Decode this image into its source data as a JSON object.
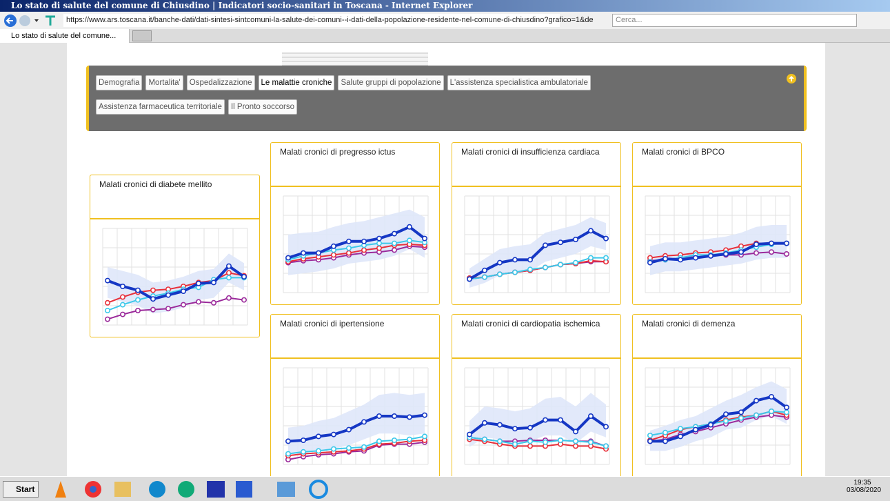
{
  "window": {
    "title": "Lo stato di salute del comune di Chiusdino | Indicatori socio-sanitari in Toscana - Internet Explorer",
    "url": "https://www.ars.toscana.it/banche-dati/dati-sintesi-sintcomuni-la-salute-dei-comuni--i-dati-della-popolazione-residente-nel-comune-di-chiusdino?grafico=1&de",
    "search": "Cerca...",
    "tab": "Lo stato di salute del comune..."
  },
  "nav": [
    "Demografia",
    "Mortalita'",
    "Ospedalizzazione",
    "Le malattie croniche",
    "Salute gruppi di popolazione",
    "L'assistenza specialistica ambulatoriale",
    "Assistenza farmaceutica territoriale",
    "Il Pronto soccorso"
  ],
  "nav_selected": "Le malattie croniche",
  "cards": [
    {
      "title": "Malati cronici di diabete mellito",
      "band": {
        "high": [
          60,
          56,
          52,
          44,
          46,
          50,
          56,
          58,
          74,
          64
        ],
        "low": [
          28,
          24,
          20,
          12,
          14,
          18,
          26,
          28,
          44,
          36
        ]
      },
      "series": [
        {
          "color": "#1537c4",
          "values": [
            46,
            40,
            36,
            27,
            31,
            35,
            43,
            44,
            61,
            50
          ]
        },
        {
          "color": "#3cc8ea",
          "values": [
            15,
            21,
            26,
            30,
            33,
            37,
            39,
            47,
            49,
            49
          ]
        },
        {
          "color": "#e8303a",
          "values": [
            23,
            29,
            34,
            36,
            37,
            40,
            44,
            46,
            54,
            51
          ]
        },
        {
          "color": "#9b2a9b",
          "values": [
            6,
            11,
            15,
            16,
            17,
            21,
            24,
            23,
            28,
            26
          ]
        }
      ]
    },
    {
      "title": "Malati cronici di pregresso ictus",
      "band": {
        "high": [
          60,
          62,
          63,
          68,
          72,
          74,
          78,
          82,
          86,
          78
        ],
        "low": [
          18,
          20,
          22,
          25,
          30,
          32,
          34,
          38,
          45,
          36
        ]
      },
      "series": [
        {
          "color": "#1537c4",
          "values": [
            36,
            41,
            41,
            48,
            53,
            53,
            56,
            61,
            68,
            56
          ]
        },
        {
          "color": "#3cc8ea",
          "values": [
            34,
            38,
            41,
            44,
            46,
            49,
            51,
            51,
            54,
            52
          ]
        },
        {
          "color": "#e8303a",
          "values": [
            32,
            35,
            37,
            39,
            41,
            44,
            46,
            49,
            50,
            49
          ]
        },
        {
          "color": "#9b2a9b",
          "values": [
            31,
            33,
            34,
            36,
            39,
            41,
            42,
            44,
            48,
            47
          ]
        }
      ]
    },
    {
      "title": "Malati cronici di insufficienza cardiaca",
      "band": {
        "high": [
          25,
          35,
          45,
          48,
          50,
          62,
          66,
          70,
          78,
          72
        ],
        "low": [
          5,
          10,
          18,
          20,
          22,
          32,
          36,
          40,
          48,
          44
        ]
      },
      "series": [
        {
          "color": "#1537c4",
          "values": [
            14,
            23,
            31,
            34,
            34,
            49,
            52,
            55,
            64,
            56
          ]
        },
        {
          "color": "#3cc8ea",
          "values": [
            14,
            16,
            19,
            21,
            24,
            26,
            29,
            31,
            36,
            36
          ]
        },
        {
          "color": "#e8303a",
          "values": [
            15,
            16,
            19,
            21,
            23,
            26,
            29,
            30,
            33,
            32
          ]
        },
        {
          "color": "#9b2a9b",
          "values": [
            14,
            16,
            19,
            21,
            23,
            26,
            29,
            30,
            32,
            32
          ]
        }
      ]
    },
    {
      "title": "Malati cronici di BPCO",
      "band": {
        "high": [
          48,
          52,
          52,
          54,
          56,
          58,
          62,
          68,
          70,
          70
        ],
        "low": [
          18,
          22,
          22,
          24,
          26,
          28,
          30,
          34,
          36,
          36
        ]
      },
      "series": [
        {
          "color": "#1537c4",
          "values": [
            31,
            35,
            34,
            36,
            38,
            40,
            42,
            50,
            51,
            51
          ]
        },
        {
          "color": "#3cc8ea",
          "values": [
            32,
            34,
            36,
            39,
            39,
            41,
            44,
            47,
            50,
            51
          ]
        },
        {
          "color": "#e8303a",
          "values": [
            36,
            38,
            39,
            41,
            42,
            44,
            48,
            51,
            51,
            51
          ]
        },
        {
          "color": "#9b2a9b",
          "values": [
            33,
            34,
            36,
            37,
            38,
            39,
            39,
            41,
            42,
            40
          ]
        }
      ]
    },
    {
      "title": "Malati cronici di ipertensione",
      "band": {
        "high": [
          38,
          40,
          45,
          48,
          55,
          62,
          72,
          74,
          72,
          74
        ],
        "low": [
          10,
          12,
          14,
          16,
          20,
          26,
          32,
          32,
          30,
          32
        ]
      },
      "series": [
        {
          "color": "#1537c4",
          "values": [
            24,
            25,
            29,
            31,
            36,
            44,
            50,
            50,
            49,
            51
          ]
        },
        {
          "color": "#3cc8ea",
          "values": [
            11,
            13,
            14,
            16,
            17,
            18,
            24,
            25,
            26,
            29
          ]
        },
        {
          "color": "#e8303a",
          "values": [
            9,
            11,
            12,
            13,
            14,
            16,
            21,
            22,
            24,
            25
          ]
        },
        {
          "color": "#9b2a9b",
          "values": [
            5,
            8,
            10,
            11,
            13,
            14,
            20,
            21,
            21,
            23
          ]
        }
      ]
    },
    {
      "title": "Malati cronici di cardiopatia ischemica",
      "band": {
        "high": [
          45,
          60,
          58,
          55,
          58,
          68,
          70,
          60,
          74,
          62
        ],
        "low": [
          18,
          28,
          26,
          24,
          24,
          30,
          30,
          22,
          34,
          28
        ]
      },
      "series": [
        {
          "color": "#1537c4",
          "values": [
            31,
            43,
            41,
            37,
            38,
            46,
            46,
            34,
            50,
            39
          ]
        },
        {
          "color": "#3cc8ea",
          "values": [
            28,
            26,
            24,
            21,
            24,
            23,
            25,
            24,
            23,
            19
          ]
        },
        {
          "color": "#e8303a",
          "values": [
            26,
            24,
            21,
            19,
            19,
            19,
            21,
            19,
            19,
            16
          ]
        },
        {
          "color": "#9b2a9b",
          "values": [
            28,
            26,
            24,
            24,
            25,
            25,
            25,
            24,
            24,
            19
          ]
        }
      ]
    },
    {
      "title": "Malati cronici di demenza",
      "band": {
        "high": [
          35,
          40,
          46,
          50,
          58,
          66,
          72,
          80,
          86,
          78
        ],
        "low": [
          14,
          14,
          18,
          24,
          28,
          36,
          38,
          46,
          50,
          42
        ]
      },
      "series": [
        {
          "color": "#1537c4",
          "values": [
            24,
            24,
            29,
            36,
            41,
            52,
            54,
            66,
            70,
            59
          ]
        },
        {
          "color": "#3cc8ea",
          "values": [
            30,
            33,
            37,
            39,
            42,
            45,
            48,
            51,
            55,
            54
          ]
        },
        {
          "color": "#e8303a",
          "values": [
            25,
            30,
            36,
            39,
            42,
            46,
            49,
            51,
            55,
            51
          ]
        },
        {
          "color": "#9b2a9b",
          "values": [
            24,
            26,
            31,
            34,
            38,
            42,
            46,
            49,
            51,
            49
          ]
        }
      ]
    }
  ],
  "taskbar": {
    "start": "Start",
    "time": "19:35",
    "date": "03/08/2020"
  }
}
